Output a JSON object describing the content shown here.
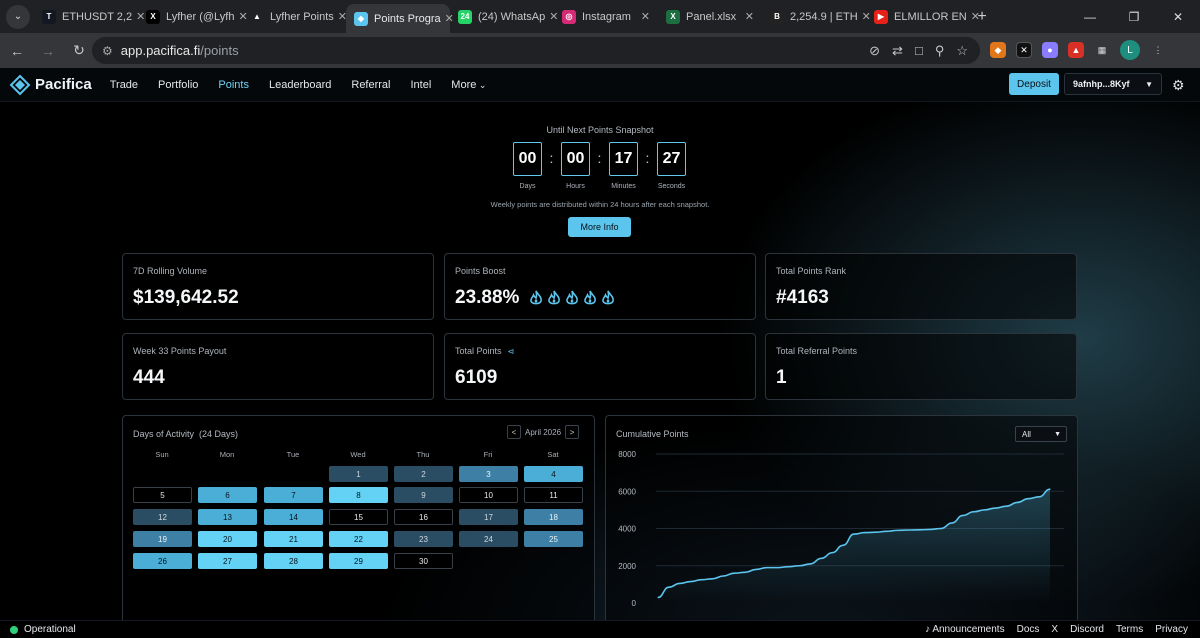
{
  "browser": {
    "tabs": [
      {
        "label": "ETHUSDT 2,2",
        "favicon": "T",
        "color": "#131722",
        "active": false
      },
      {
        "label": "Lyfher (@Lyfh",
        "favicon": "X",
        "color": "#000000",
        "active": false
      },
      {
        "label": "Lyfher Points",
        "favicon": "▲",
        "color": "#202124",
        "active": false
      },
      {
        "label": "Points Progra",
        "favicon": "◆",
        "color": "#5cc5ee",
        "active": true
      },
      {
        "label": "(24) WhatsAp",
        "favicon": "24",
        "color": "#25d366",
        "active": false
      },
      {
        "label": "Instagram",
        "favicon": "◎",
        "color": "#d62976",
        "active": false
      },
      {
        "label": "Panel.xlsx",
        "favicon": "X",
        "color": "#1d6f42",
        "active": false
      },
      {
        "label": "2,254.9 | ETH",
        "favicon": "B",
        "color": "#222222",
        "active": false
      },
      {
        "label": "ELMILLOR EN",
        "favicon": "▶",
        "color": "#e62117",
        "active": false
      }
    ],
    "url_host": "app.pacifica.fi",
    "url_path": "/points",
    "avatar_initial": "L"
  },
  "app": {
    "brand": "Pacifica",
    "nav": [
      "Trade",
      "Portfolio",
      "Points",
      "Leaderboard",
      "Referral",
      "Intel",
      "More"
    ],
    "active_nav": "Points",
    "deposit_label": "Deposit",
    "wallet_label": "9afnhp...8Kyf",
    "accent": "#5cc5ee"
  },
  "snapshot": {
    "title": "Until Next Points Snapshot",
    "units": [
      {
        "value": "00",
        "label": "Days"
      },
      {
        "value": "00",
        "label": "Hours"
      },
      {
        "value": "17",
        "label": "Minutes"
      },
      {
        "value": "27",
        "label": "Seconds"
      }
    ],
    "note": "Weekly points are distributed within 24 hours after each snapshot.",
    "more_info_label": "More Info"
  },
  "stats": [
    {
      "label": "7D Rolling Volume",
      "value": "$139,642.52"
    },
    {
      "label": "Points Boost",
      "value": "23.88%",
      "flames": 5
    },
    {
      "label": "Total Points Rank",
      "value": "#4163"
    },
    {
      "label": "Week 33 Points Payout",
      "value": "444"
    },
    {
      "label": "Total Points",
      "value": "6109",
      "share_icon": true
    },
    {
      "label": "Total Referral Points",
      "value": "1"
    }
  ],
  "activity": {
    "title": "Days of Activity",
    "count_label": "(24 Days)",
    "month": "April 2026",
    "prev": "<",
    "next": ">",
    "weekdays": [
      "Sun",
      "Mon",
      "Tue",
      "Wed",
      "Thu",
      "Fri",
      "Sat"
    ],
    "start_offset": 3,
    "levels": [
      1,
      1,
      2,
      3,
      0,
      3,
      3,
      4,
      1,
      0,
      0,
      1,
      3,
      3,
      0,
      0,
      1,
      2,
      2,
      4,
      4,
      4,
      1,
      1,
      2,
      3,
      4,
      4,
      4,
      0
    ]
  },
  "cumulative": {
    "title": "Cumulative Points",
    "range_selected": "All"
  },
  "chart_data": {
    "type": "area",
    "title": "Cumulative Points",
    "xlabel": "",
    "ylabel": "",
    "ylim": [
      0,
      8000
    ],
    "yticks": [
      0,
      2000,
      4000,
      6000,
      8000
    ],
    "color": "#5cc5ee",
    "series": [
      {
        "values": [
          300,
          850,
          1050,
          1150,
          1250,
          1300,
          1450,
          1600,
          1650,
          1800,
          1900,
          1900,
          1950,
          2000,
          2100,
          2400,
          2700,
          3100,
          3700,
          3780,
          3800,
          3850,
          3900,
          3920,
          3930,
          3950,
          4000,
          4300,
          4700,
          4900,
          5000,
          5100,
          5200,
          5400,
          5600,
          5700,
          6109
        ]
      }
    ]
  },
  "footer": {
    "status": "Operational",
    "status_color": "#2fd07a",
    "links": [
      "Announcements",
      "Docs",
      "X",
      "Discord",
      "Terms",
      "Privacy"
    ]
  }
}
